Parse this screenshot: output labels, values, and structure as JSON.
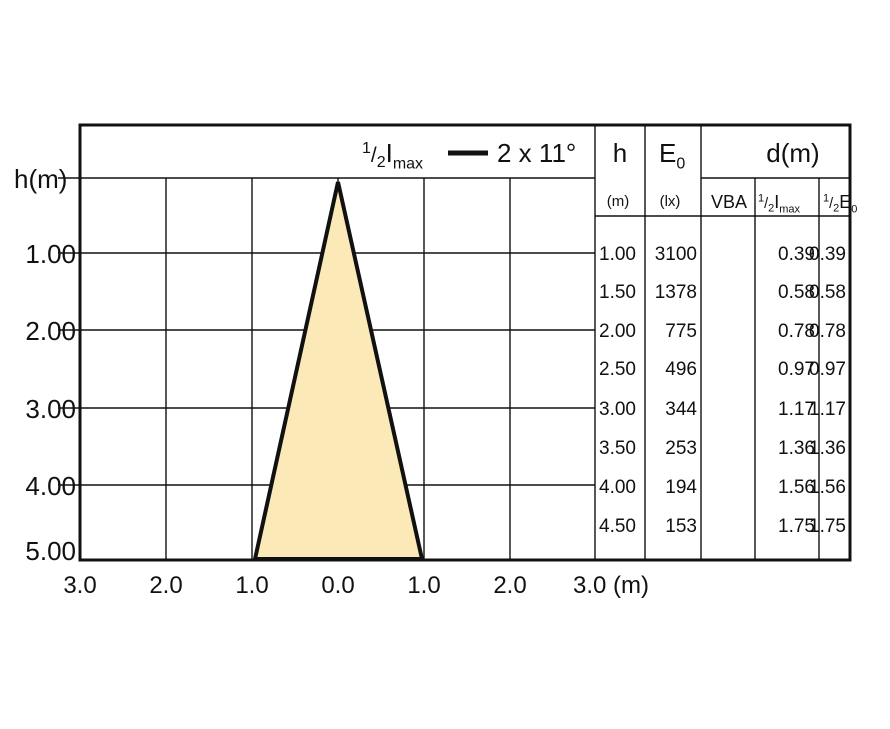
{
  "plot": {
    "y_axis_label": "h(m)",
    "y_ticks": [
      "1.00",
      "2.00",
      "3.00",
      "4.00",
      "5.00"
    ],
    "x_ticks": [
      "3.0",
      "2.0",
      "1.0",
      "0.0",
      "1.0",
      "2.0",
      "3.0 (m)"
    ],
    "legend": {
      "symbol": {
        "numerator": "1",
        "slash": "/",
        "denominator": "2",
        "main": "I",
        "subscript": "max"
      },
      "label": "2 x 11°"
    }
  },
  "table": {
    "headers": {
      "h": "h",
      "e0": {
        "main": "E",
        "subscript": "0"
      },
      "d": "d(m)"
    },
    "units": {
      "h": "(m)",
      "e0": "(lx)",
      "vba": "VBA",
      "half_imax": {
        "numerator": "1",
        "slash": "/",
        "denominator": "2",
        "main": "I",
        "subscript": "max"
      },
      "half_e": {
        "numerator": "1",
        "slash": "/",
        "denominator": "2",
        "main": "E",
        "subscript": "0"
      }
    },
    "rows": [
      [
        "1.00",
        "3100",
        "0.39",
        "0.39"
      ],
      [
        "1.50",
        "1378",
        "0.58",
        "0.58"
      ],
      [
        "2.00",
        "775",
        "0.78",
        "0.78"
      ],
      [
        "2.50",
        "496",
        "0.97",
        "0.97"
      ],
      [
        "3.00",
        "344",
        "1.17",
        "1.17"
      ],
      [
        "3.50",
        "253",
        "1.36",
        "1.36"
      ],
      [
        "4.00",
        "194",
        "1.56",
        "1.56"
      ],
      [
        "4.50",
        "153",
        "1.75",
        "1.75"
      ]
    ]
  }
}
